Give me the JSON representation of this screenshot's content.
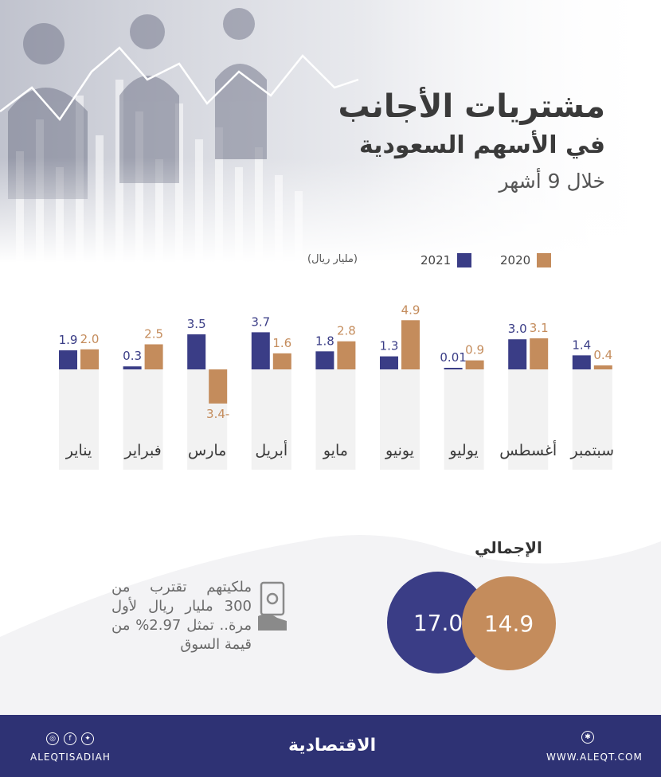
{
  "header": {
    "title": "مشتريات الأجانب",
    "subtitle": "في الأسهم السعودية",
    "period": "خلال 9 أشهر"
  },
  "colors": {
    "y2021": "#3a3d86",
    "y2020": "#c48c5c",
    "footer": "#2e3274"
  },
  "chart_data": {
    "type": "bar",
    "categories": [
      "يناير",
      "فبراير",
      "مارس",
      "أبريل",
      "مايو",
      "يونيو",
      "يوليو",
      "أغسطس",
      "سبتمبر"
    ],
    "series": [
      {
        "name": "2021",
        "values": [
          1.9,
          0.3,
          3.5,
          3.7,
          1.8,
          1.3,
          0.01,
          3.0,
          1.4
        ],
        "labels": [
          "1.9",
          "0.3",
          "3.5",
          "3.7",
          "1.8",
          "1.3",
          "0.01",
          "3.0",
          "1.4"
        ]
      },
      {
        "name": "2020",
        "values": [
          2.0,
          2.5,
          -3.4,
          1.6,
          2.8,
          4.9,
          0.9,
          3.1,
          0.4
        ],
        "labels": [
          "2.0",
          "2.5",
          "-3.4",
          "1.6",
          "2.8",
          "4.9",
          "0.9",
          "3.1",
          "0.4"
        ]
      }
    ],
    "unit_label": "(مليار ريال)",
    "category_order": "right-to-left",
    "legend_placement": "top"
  },
  "totals": {
    "title": "الإجمالي",
    "y2021": "17.0",
    "y2020": "14.9"
  },
  "note": {
    "text": "ملكيتهم تقترب من 300 مليار ريال لأول مرة.. تمثل 2.97% من قيمة السوق",
    "icon": "money-hand-icon"
  },
  "footer": {
    "handle": "ALEQTISADIAH",
    "brand": "الاقتصادية",
    "website": "WWW.ALEQT.COM",
    "social_icons": [
      "instagram-icon",
      "facebook-icon",
      "twitter-icon"
    ],
    "web_icon": "globe-icon"
  }
}
